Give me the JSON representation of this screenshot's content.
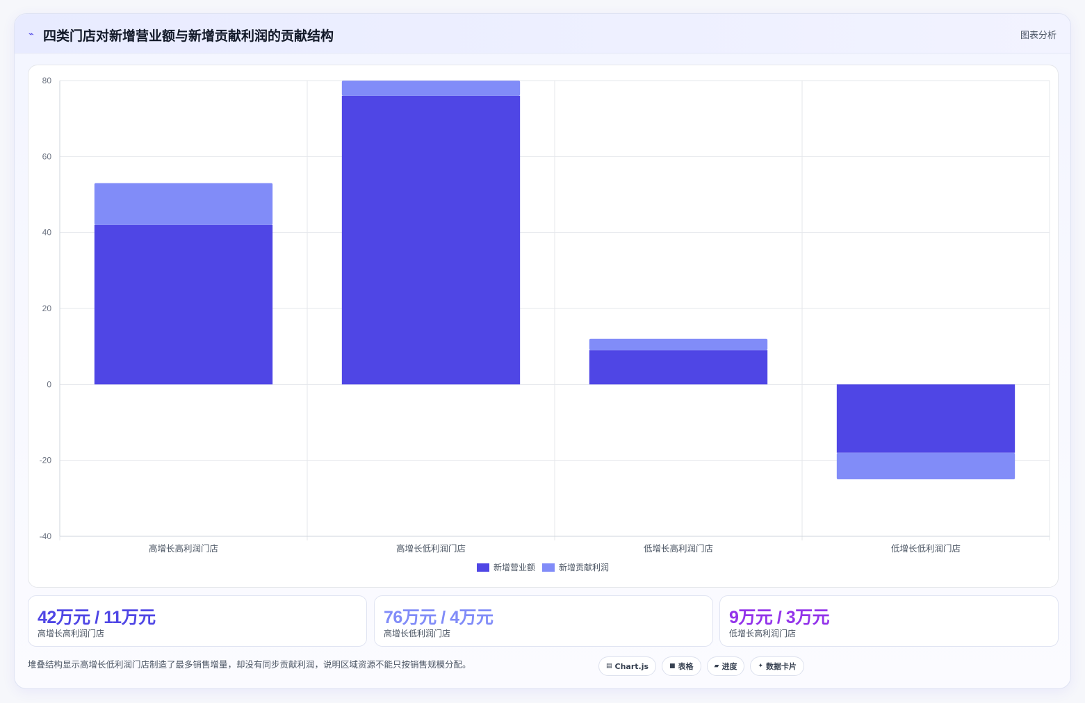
{
  "header": {
    "title_icon": "trend-icon",
    "title": "四类门店对新增营业额与新增贡献利润的贡献结构",
    "tag": "图表分析"
  },
  "colors": {
    "primary": "#4f46e5",
    "secondary": "#818cf8",
    "accent_purple": "#9333ea"
  },
  "chart_data": {
    "type": "bar",
    "stacked": true,
    "categories": [
      "高增长高利润门店",
      "高增长低利润门店",
      "低增长高利润门店",
      "低增长低利润门店"
    ],
    "series": [
      {
        "name": "新增营业额",
        "values": [
          42,
          76,
          9,
          -18
        ],
        "color": "#4f46e5"
      },
      {
        "name": "新增贡献利润",
        "values": [
          11,
          4,
          3,
          -7
        ],
        "color": "#818cf8"
      }
    ],
    "ylim": [
      -40,
      80
    ],
    "yticks": [
      80,
      60,
      40,
      20,
      0,
      -20,
      -40
    ],
    "grid": true,
    "legend": "bottom-center"
  },
  "stats": [
    {
      "value": "42万元 / 11万元",
      "label": "高增长高利润门店",
      "color": "#4f46e5"
    },
    {
      "value": "76万元 / 4万元",
      "label": "高增长低利润门店",
      "color": "#818cf8"
    },
    {
      "value": "9万元 / 3万元",
      "label": "低增长高利润门店",
      "color": "#9333ea"
    }
  ],
  "note": "堆叠结构显示高增长低利润门店制造了最多销售增量，却没有同步贡献利润，说明区域资源不能只按销售规模分配。",
  "chips": [
    {
      "icon": "chart-icon",
      "label": "Chart.js"
    },
    {
      "icon": "table-icon",
      "label": "表格"
    },
    {
      "icon": "progress-icon",
      "label": "进度"
    },
    {
      "icon": "sparkle-icon",
      "label": "数据卡片"
    }
  ]
}
